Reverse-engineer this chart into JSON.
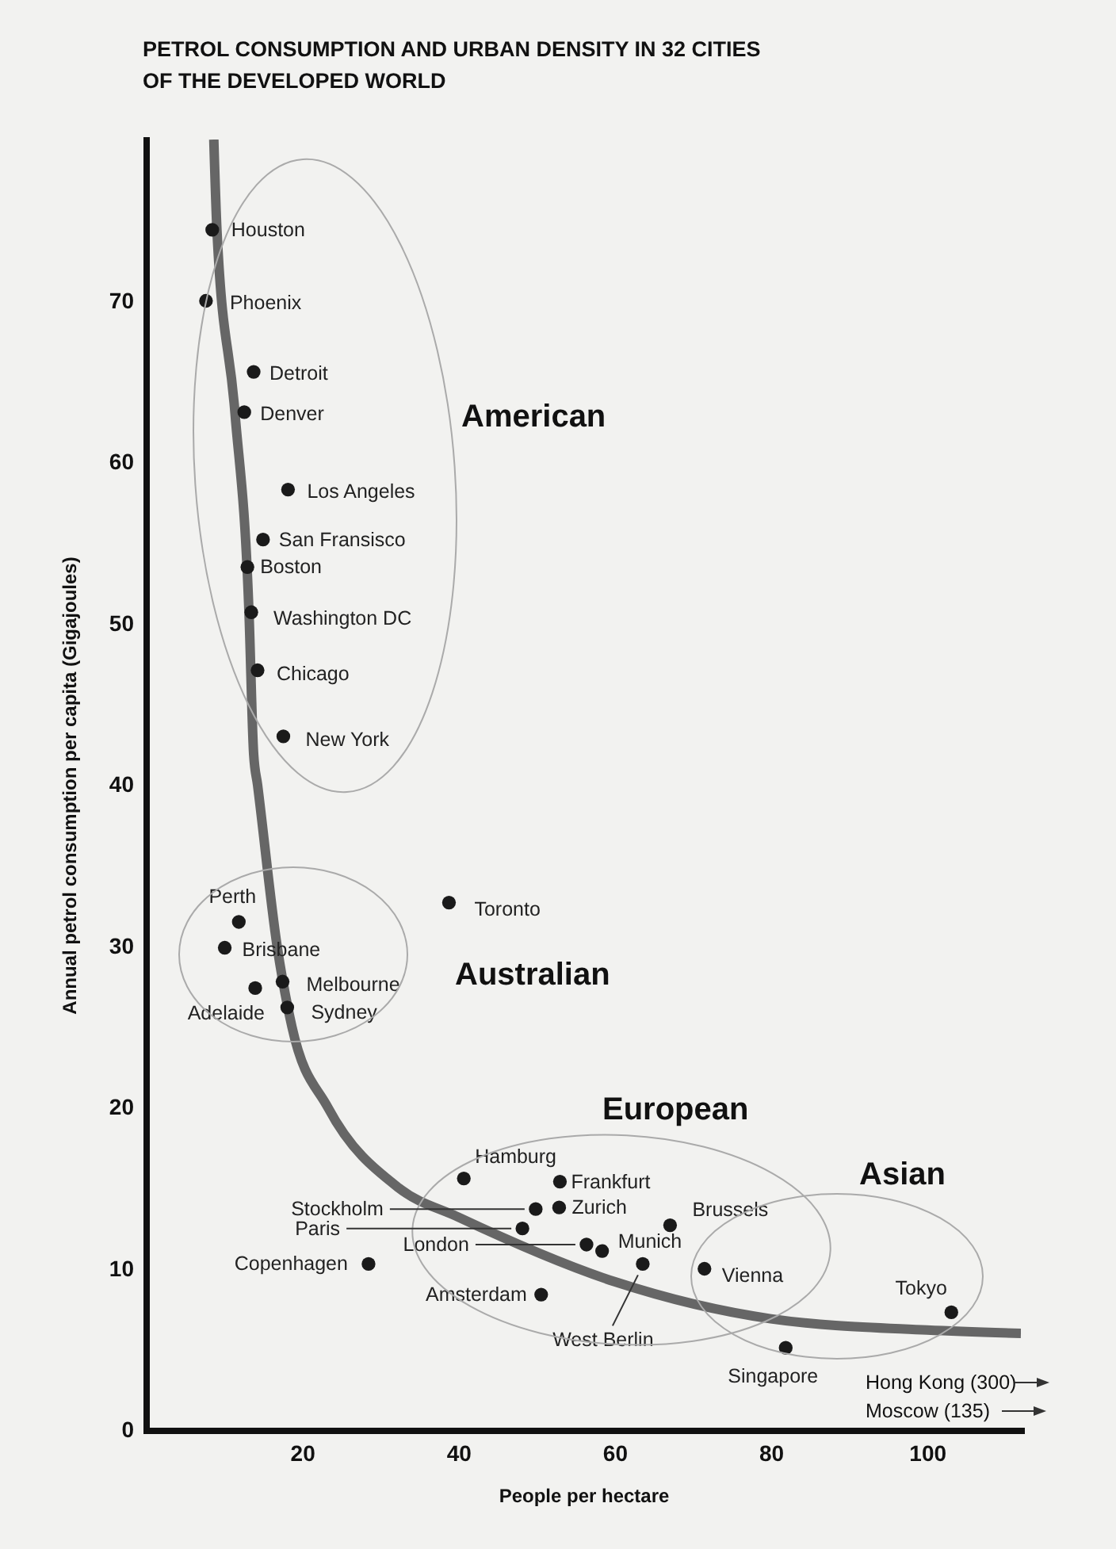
{
  "chart_data": {
    "type": "scatter",
    "title": "PETROL CONSUMPTION AND URBAN DENSITY IN 32 CITIES OF THE DEVELOPED WORLD",
    "xlabel": "People per hectare",
    "ylabel": "Annual petrol consumption per capita (Gigajoules)",
    "xlim": [
      0,
      112
    ],
    "ylim": [
      0,
      80
    ],
    "xticks": [
      20,
      40,
      60,
      80,
      100
    ],
    "yticks": [
      0,
      10,
      20,
      30,
      40,
      50,
      60,
      70
    ],
    "marker": "circle",
    "annotations": [
      "American",
      "Australian",
      "European",
      "Asian",
      "Hong Kong (300)",
      "Moscow (135)"
    ],
    "series": [
      {
        "color": "#1a1a1a",
        "x": [
          8.5,
          7.7,
          13.8,
          12.6,
          18.2,
          15.0,
          13.0,
          13.5,
          14.3,
          17.6,
          11.9,
          10.1,
          17.5,
          14.0,
          18.1,
          38.8,
          40.7,
          53.0,
          49.9,
          52.9,
          48.2,
          67.1,
          56.4,
          58.4,
          28.5,
          63.6,
          71.5,
          50.6,
          103.1,
          81.9
        ],
        "values": [
          74.4,
          70.0,
          65.6,
          63.1,
          58.3,
          55.2,
          53.5,
          50.7,
          47.1,
          43.0,
          31.5,
          29.9,
          27.8,
          27.4,
          26.2,
          32.7,
          15.6,
          15.4,
          13.7,
          13.8,
          12.5,
          12.7,
          11.5,
          11.1,
          10.3,
          10.3,
          10.0,
          8.4,
          7.3,
          5.1
        ],
        "value_labels": [
          "Houston",
          "Phoenix",
          "Detroit",
          "Denver",
          "Los Angeles",
          "San Fransisco",
          "Boston",
          "Washington DC",
          "Chicago",
          "New York",
          "Perth",
          "Brisbane",
          "Melbourne",
          "Adelaide",
          "Sydney",
          "Toronto",
          "Hamburg",
          "Frankfurt",
          "Stockholm",
          "Zurich",
          "Paris",
          "Brussels",
          "London",
          "Munich",
          "Copenhagen",
          "West Berlin",
          "Vienna",
          "Amsterdam",
          "Tokyo",
          "Singapore"
        ]
      },
      {
        "type": "line",
        "marker": "none",
        "color": "#666666",
        "x": [
          8.7,
          9.1,
          11.4,
          13.2,
          13.8,
          14.3,
          16.8,
          18.7,
          23.3,
          32.4,
          40,
          60,
          80,
          100,
          112
        ],
        "values": [
          80,
          74.4,
          63.1,
          50.7,
          41.9,
          40,
          30,
          25,
          20,
          15,
          13.2,
          9.2,
          6.9,
          6.2,
          6.0
        ]
      }
    ]
  }
}
